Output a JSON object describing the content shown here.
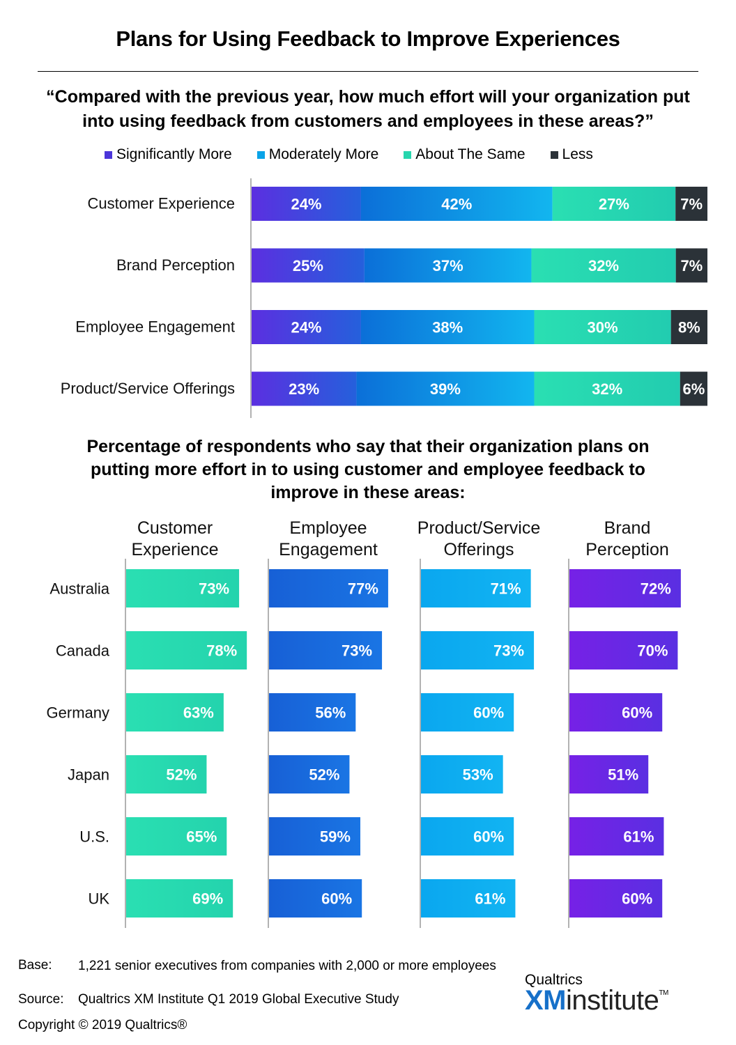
{
  "header": {
    "title": "Plans for Using Feedback to Improve Experiences",
    "question": "“Compared with the previous year, how much effort will your organization put into using feedback from customers and employees in these areas?”"
  },
  "legend": [
    {
      "label": "Significantly More",
      "color": "#4b35d9"
    },
    {
      "label": "Moderately More",
      "color": "#0aa3e8"
    },
    {
      "label": "About The Same",
      "color": "#27d6ae"
    },
    {
      "label": "Less",
      "color": "#2b3238"
    }
  ],
  "subtitle": "Percentage of respondents who say that their organization plans on putting more effort in to using customer and employee feedback to improve in these areas:",
  "chart_data": [
    {
      "type": "bar",
      "orientation": "horizontal",
      "stacked": true,
      "categories": [
        "Customer Experience",
        "Brand Perception",
        "Employee Engagement",
        "Product/Service Offerings"
      ],
      "series": [
        {
          "name": "Significantly More",
          "values": [
            24,
            25,
            24,
            23
          ]
        },
        {
          "name": "Moderately More",
          "values": [
            42,
            37,
            38,
            39
          ]
        },
        {
          "name": "About The Same",
          "values": [
            27,
            32,
            30,
            32
          ]
        },
        {
          "name": "Less",
          "values": [
            7,
            7,
            8,
            6
          ]
        }
      ],
      "unit": "%",
      "xlim": [
        0,
        100
      ],
      "legend": "top"
    },
    {
      "type": "bar",
      "orientation": "horizontal",
      "panels": true,
      "categories": [
        "Australia",
        "Canada",
        "Germany",
        "Japan",
        "U.S.",
        "UK"
      ],
      "series": [
        {
          "name": "Customer Experience",
          "values": [
            73,
            78,
            63,
            52,
            65,
            69
          ],
          "color": "#27d6ae"
        },
        {
          "name": "Employee Engagement",
          "values": [
            77,
            73,
            56,
            52,
            59,
            60
          ],
          "color": "#1670e0"
        },
        {
          "name": "Product/Service Offerings",
          "values": [
            71,
            73,
            60,
            53,
            60,
            61
          ],
          "color": "#0aaaf0"
        },
        {
          "name": "Brand Perception",
          "values": [
            72,
            70,
            60,
            51,
            61,
            60
          ],
          "color": "#6a25e6"
        }
      ],
      "unit": "%"
    }
  ],
  "footer": {
    "base_label": "Base:",
    "base_text": "1,221 senior executives from companies with 2,000 or more employees",
    "source_label": "Source:",
    "source_text": "Qualtrics XM Institute Q1 2019 Global Executive Study",
    "copyright": "Copyright © 2019 Qualtrics®"
  },
  "logo": {
    "small": "Qualtrics",
    "xm": "XM",
    "institute": "institute",
    "tm": "TM"
  }
}
